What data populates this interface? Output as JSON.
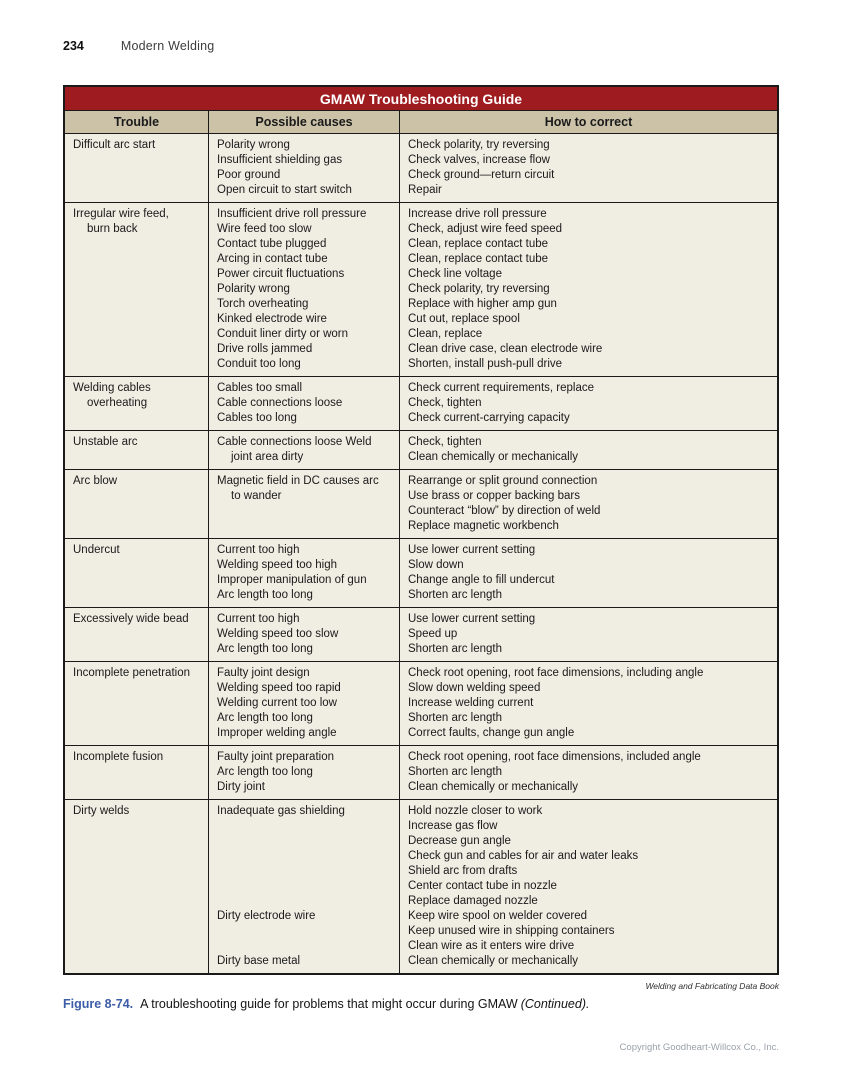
{
  "page_header": {
    "page_number": "234",
    "running_head": "Modern Welding"
  },
  "table": {
    "title": "GMAW Troubleshooting Guide",
    "columns": [
      "Trouble",
      "Possible causes",
      "How to correct"
    ],
    "rows": [
      {
        "trouble": [
          "Difficult arc start"
        ],
        "causes": [
          "Polarity wrong",
          "Insufficient shielding gas",
          "Poor ground",
          "Open circuit to start switch"
        ],
        "corrections": [
          "Check polarity, try reversing",
          "Check valves, increase flow",
          "Check ground—return circuit",
          "Repair"
        ]
      },
      {
        "trouble": [
          "Irregular wire feed,\nburn back"
        ],
        "causes": [
          "Insufficient drive roll pressure",
          "Wire feed too slow",
          "Contact tube plugged",
          "Arcing in contact tube",
          "Power circuit fluctuations",
          "Polarity wrong",
          "Torch overheating",
          "Kinked electrode wire",
          "Conduit liner dirty or worn",
          "Drive rolls jammed",
          "Conduit too long"
        ],
        "corrections": [
          "Increase drive roll pressure",
          "Check, adjust wire feed speed",
          "Clean, replace contact tube",
          "Clean, replace contact tube",
          "Check line voltage",
          "Check polarity, try reversing",
          "Replace with higher amp gun",
          "Cut out, replace spool",
          "Clean, replace",
          "Clean drive case, clean electrode wire",
          "Shorten, install push-pull drive"
        ]
      },
      {
        "trouble": [
          "Welding cables\noverheating"
        ],
        "causes": [
          "Cables too small",
          "Cable connections loose",
          "Cables too long"
        ],
        "corrections": [
          "Check current requirements, replace",
          "Check, tighten",
          "Check current-carrying capacity"
        ]
      },
      {
        "trouble": [
          "Unstable arc"
        ],
        "causes": [
          "Cable connections loose Weld\njoint area dirty"
        ],
        "corrections": [
          "Check, tighten",
          "Clean chemically or mechanically"
        ]
      },
      {
        "trouble": [
          "Arc blow"
        ],
        "causes": [
          "Magnetic field in DC causes arc\nto wander"
        ],
        "corrections": [
          "Rearrange or split ground connection",
          "Use brass or copper backing bars",
          "Counteract “blow” by direction of weld",
          "Replace magnetic workbench"
        ]
      },
      {
        "trouble": [
          "Undercut"
        ],
        "causes": [
          "Current too high",
          "Welding speed too high",
          "Improper manipulation of gun",
          "Arc length too long"
        ],
        "corrections": [
          "Use lower current setting",
          "Slow down",
          "Change angle to fill undercut",
          "Shorten arc length"
        ]
      },
      {
        "trouble": [
          "Excessively wide bead"
        ],
        "causes": [
          "Current too high",
          "Welding speed too slow",
          "Arc length too long"
        ],
        "corrections": [
          "Use lower current setting",
          "Speed up",
          "Shorten arc length"
        ]
      },
      {
        "trouble": [
          "Incomplete penetration"
        ],
        "causes": [
          "Faulty joint design",
          "Welding speed too rapid",
          "Welding current too low",
          "Arc length too long",
          "Improper welding angle"
        ],
        "corrections": [
          "Check root opening, root face dimensions, including angle",
          "Slow down welding speed",
          "Increase welding current",
          "Shorten arc length",
          "Correct faults, change gun angle"
        ]
      },
      {
        "trouble": [
          "Incomplete fusion"
        ],
        "causes": [
          "Faulty joint preparation",
          "Arc length too long",
          "Dirty joint"
        ],
        "corrections": [
          "Check root opening, root face dimensions, included angle",
          "Shorten arc length",
          "Clean chemically or mechanically"
        ]
      },
      {
        "trouble": [
          "Dirty welds"
        ],
        "causes": [
          "Inadequate gas shielding",
          "",
          "",
          "",
          "",
          "",
          "",
          "Dirty electrode wire",
          "",
          "",
          "Dirty base metal"
        ],
        "corrections": [
          "Hold nozzle closer to work",
          "Increase gas flow",
          "Decrease gun angle",
          "Check gun and cables for air and water leaks",
          "Shield arc from drafts",
          "Center contact tube in nozzle",
          "Replace damaged nozzle",
          "Keep wire spool on welder covered",
          "Keep unused wire in shipping containers",
          "Clean wire as it enters wire drive",
          "Clean chemically or mechanically"
        ]
      }
    ],
    "source_credit": "Welding and Fabricating Data Book"
  },
  "caption": {
    "figure_label": "Figure 8-74.",
    "text": "A troubleshooting guide for problems that might occur during GMAW",
    "continued": "(Continued)."
  },
  "footer": {
    "copyright": "Copyright Goodheart-Willcox Co., Inc."
  },
  "colors": {
    "accent_red": "#9E1B20",
    "header_tan": "#CBC2A8",
    "cell_cream": "#F0EDE3",
    "caption_blue": "#3C5DA8",
    "copyright_gray": "#9BA1A9",
    "border_dark": "#1A1A1A"
  }
}
